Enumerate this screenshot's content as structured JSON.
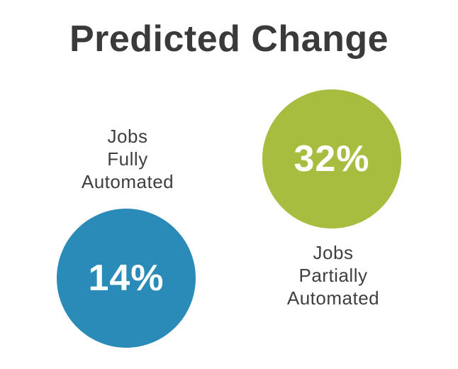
{
  "title": "Predicted Change",
  "stats": {
    "fully": {
      "value": "14%",
      "label_lines": [
        "Jobs",
        "Fully",
        "Automated"
      ],
      "color": "#2a8ab8"
    },
    "partially": {
      "value": "32%",
      "label_lines": [
        "Jobs",
        "Partially",
        "Automated"
      ],
      "color": "#a7bd3f"
    }
  }
}
